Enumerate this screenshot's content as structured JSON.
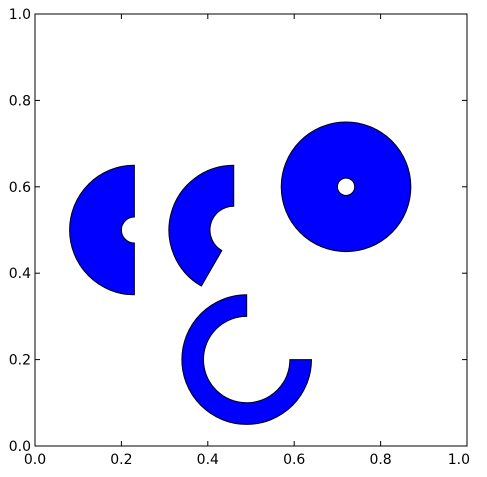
{
  "chart_data": {
    "type": "wedge-patches",
    "title": "",
    "xlabel": "",
    "ylabel": "",
    "xlim": [
      0.0,
      1.0
    ],
    "ylim": [
      0.0,
      1.0
    ],
    "grid": false,
    "xticks": [
      {
        "value": 0.0,
        "label": "0.0"
      },
      {
        "value": 0.2,
        "label": "0.2"
      },
      {
        "value": 0.4,
        "label": "0.4"
      },
      {
        "value": 0.6,
        "label": "0.6"
      },
      {
        "value": 0.8,
        "label": "0.8"
      },
      {
        "value": 1.0,
        "label": "1.0"
      }
    ],
    "yticks": [
      {
        "value": 0.0,
        "label": "0.0"
      },
      {
        "value": 0.2,
        "label": "0.2"
      },
      {
        "value": 0.4,
        "label": "0.4"
      },
      {
        "value": 0.6,
        "label": "0.6"
      },
      {
        "value": 0.8,
        "label": "0.8"
      },
      {
        "value": 1.0,
        "label": "1.0"
      }
    ],
    "fill_color": "#0000ff",
    "edge_color": "#000000",
    "wedges": [
      {
        "name": "half-ring-left",
        "center": [
          0.23,
          0.5
        ],
        "r_outer": 0.15,
        "r_inner": 0.03,
        "theta1_deg": 90,
        "theta2_deg": 270
      },
      {
        "name": "partial-ring-middle",
        "center": [
          0.46,
          0.5
        ],
        "r_outer": 0.15,
        "r_inner": 0.055,
        "theta1_deg": 90,
        "theta2_deg": 240
      },
      {
        "name": "full-ring-right",
        "center": [
          0.72,
          0.6
        ],
        "r_outer": 0.15,
        "r_inner": 0.02,
        "theta1_deg": 0,
        "theta2_deg": 360
      },
      {
        "name": "open-ring-bottom",
        "center": [
          0.49,
          0.2
        ],
        "r_outer": 0.15,
        "r_inner": 0.1,
        "theta1_deg": 90,
        "theta2_deg": 360
      }
    ]
  }
}
